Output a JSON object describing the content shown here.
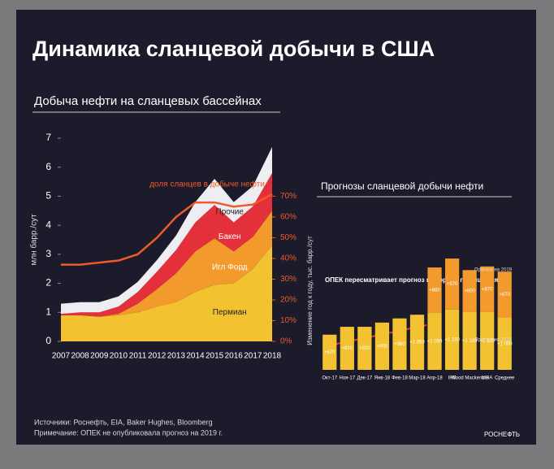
{
  "slide": {
    "title": "Динамика сланцевой добычи в США",
    "sources": "Источники: Роснефть, EIA, Baker Hughes, Bloomberg",
    "note": "Примечание: ОПЕК не опубликовала прогноз на 2019 г.",
    "logo": "РОСНЕФТЬ"
  },
  "chart_data": [
    {
      "type": "stacked_area",
      "title": "Добыча нефти на сланцевых бассейнах",
      "y_label": "млн барр./сут",
      "categories": [
        "2007",
        "2008",
        "2009",
        "2010",
        "2011",
        "2012",
        "2013",
        "2014",
        "2015",
        "2016",
        "2017",
        "2018"
      ],
      "ylim": [
        0,
        7
      ],
      "yticks": [
        0,
        1,
        2,
        3,
        4,
        5,
        6,
        7
      ],
      "y2lim": [
        0,
        98
      ],
      "y2ticks": [
        {
          "value": 0,
          "label": "0%"
        },
        {
          "value": 10,
          "label": "10%"
        },
        {
          "value": 20,
          "label": "20%"
        },
        {
          "value": 30,
          "label": "30%"
        },
        {
          "value": 40,
          "label": "40%"
        },
        {
          "value": 50,
          "label": "50%"
        },
        {
          "value": 60,
          "label": "60%"
        },
        {
          "value": 70,
          "label": "70%"
        }
      ],
      "series": [
        {
          "name": "Пермиан",
          "color": "#f2c230",
          "values": [
            0.9,
            0.9,
            0.85,
            0.9,
            1.0,
            1.2,
            1.35,
            1.7,
            1.95,
            2.0,
            2.5,
            3.3
          ]
        },
        {
          "name": "Игл Форд",
          "color": "#f39a2c",
          "values": [
            0,
            0,
            0,
            0.05,
            0.3,
            0.6,
            1.0,
            1.4,
            1.6,
            1.1,
            1.1,
            1.2
          ]
        },
        {
          "name": "Бакен",
          "color": "#e4303a",
          "values": [
            0.05,
            0.1,
            0.15,
            0.25,
            0.4,
            0.6,
            0.8,
            1.0,
            1.15,
            1.0,
            1.05,
            1.3
          ]
        },
        {
          "name": "Прочие",
          "color": "#eeeef2",
          "values": [
            0.35,
            0.35,
            0.35,
            0.35,
            0.35,
            0.4,
            0.5,
            0.7,
            0.9,
            0.7,
            0.7,
            0.9
          ]
        },
        {
          "name": "доля сланцев в добыче нефти",
          "color": "#f05a28",
          "axis": "y2",
          "values": [
            37,
            37,
            38,
            39,
            42,
            50,
            60,
            67,
            67,
            65,
            66,
            71
          ]
        }
      ]
    },
    {
      "type": "stacked_bar",
      "title": "Прогнозы сланцевой добычи нефти",
      "y_label": "Изменение год к году, тыс. барр./сут",
      "annotation": "ОПЕК пересматривает прогноз в сторону повышения",
      "categories": [
        "Окт-17",
        "Ноя-17",
        "Дек-17",
        "Янв-18",
        "Фев-18",
        "Мар-18",
        "Апр-18",
        "IHS",
        "Wood Mackenzie",
        "МЭА",
        "Среднее"
      ],
      "ylim": [
        0,
        2400
      ],
      "series": [
        {
          "name": "Прогноз на 2018",
          "color": "#f2c230",
          "values": [
            670,
            820,
            820,
            900,
            980,
            1050,
            1090,
            1150,
            1100,
            1100,
            1000
          ],
          "value_labels": [
            "+670",
            "+820",
            "+820",
            "+900",
            "+980",
            "+1 050",
            "+1 090",
            "+1 150",
            "+1 100",
            "+1 100",
            "+1 000"
          ]
        },
        {
          "name": "Прогноз на 2019",
          "color": "#f39a2c",
          "values": [
            null,
            null,
            null,
            null,
            null,
            null,
            860,
            970,
            800,
            870,
            870
          ],
          "value_labels": [
            null,
            null,
            null,
            null,
            null,
            null,
            "+860",
            "+970",
            "+800",
            "+870",
            "+870"
          ]
        }
      ]
    }
  ]
}
